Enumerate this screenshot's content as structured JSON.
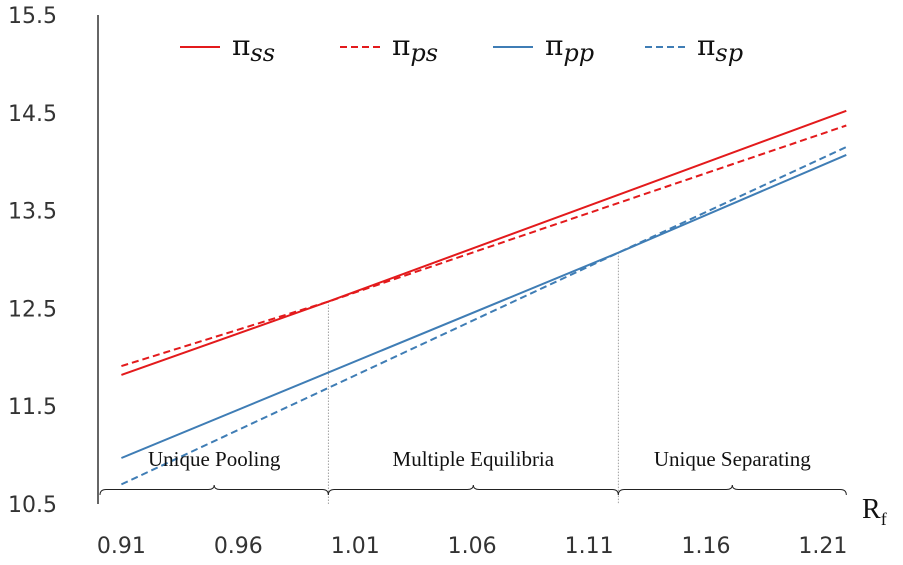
{
  "chart_data": {
    "type": "line",
    "xlabel": "R",
    "xlabel_sub": "f",
    "ylabel": "",
    "title": "",
    "xlim": [
      0.9,
      1.225
    ],
    "ylim": [
      10.5,
      15.5
    ],
    "x_ticks": [
      "0.91",
      "0.96",
      "1.01",
      "1.06",
      "1.11",
      "1.16",
      "1.21"
    ],
    "y_ticks": [
      "10.5",
      "11.5",
      "12.5",
      "13.5",
      "14.5",
      "15.5"
    ],
    "grid": false,
    "legend_position": "top",
    "series": [
      {
        "name": "π_ss",
        "color": "#e31a1c",
        "dash": false,
        "x": [
          0.91,
          0.9985,
          1.22
        ],
        "y": [
          11.82,
          12.57,
          14.52
        ]
      },
      {
        "name": "π_ps",
        "color": "#e31a1c",
        "dash": true,
        "x": [
          0.91,
          0.9985,
          1.22
        ],
        "y": [
          11.91,
          12.57,
          14.37
        ]
      },
      {
        "name": "π_pp",
        "color": "#3f7db5",
        "dash": false,
        "x": [
          0.91,
          1.1225,
          1.22
        ],
        "y": [
          10.97,
          13.07,
          14.07
        ]
      },
      {
        "name": "π_sp",
        "color": "#3f7db5",
        "dash": true,
        "x": [
          0.91,
          1.1225,
          1.22
        ],
        "y": [
          10.7,
          13.07,
          14.15
        ]
      }
    ],
    "vlines": [
      0.9985,
      1.1225
    ],
    "regions": [
      {
        "label": "Unique Pooling",
        "from": 0.9,
        "to": 0.9985
      },
      {
        "label": "Multiple Equilibria",
        "from": 0.9985,
        "to": 1.1225
      },
      {
        "label": "Unique Separating",
        "from": 1.1225,
        "to": 1.22
      }
    ]
  }
}
